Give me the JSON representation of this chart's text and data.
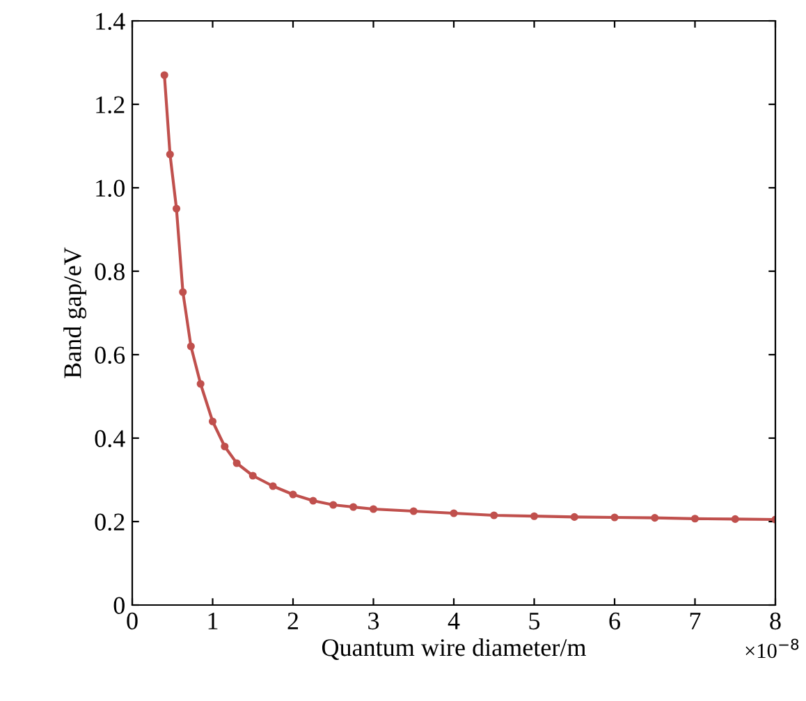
{
  "chart_data": {
    "type": "line",
    "xlabel": "Quantum wire diameter/m",
    "ylabel": "Band gap/eV",
    "x": [
      0.4,
      0.47,
      0.55,
      0.63,
      0.73,
      0.85,
      1.0,
      1.15,
      1.3,
      1.5,
      1.75,
      2.0,
      2.25,
      2.5,
      2.75,
      3.0,
      3.5,
      4.0,
      4.5,
      5.0,
      5.5,
      6.0,
      6.5,
      7.0,
      7.5,
      8.0
    ],
    "series": [
      {
        "color": "#c0504d",
        "values": [
          1.27,
          1.08,
          0.95,
          0.75,
          0.62,
          0.53,
          0.44,
          0.38,
          0.34,
          0.31,
          0.285,
          0.265,
          0.25,
          0.24,
          0.235,
          0.23,
          0.225,
          0.22,
          0.215,
          0.213,
          0.211,
          0.21,
          0.209,
          0.207,
          0.206,
          0.205
        ]
      }
    ],
    "xlim": [
      0,
      8
    ],
    "xticks": [
      0,
      1,
      2,
      3,
      4,
      5,
      6,
      7,
      8
    ],
    "ylim": [
      0,
      1.4
    ],
    "yticks": [
      0,
      0.2,
      0.4,
      0.6,
      0.8,
      {
        "value": 1,
        "label": "1.0"
      },
      1.2,
      1.4
    ],
    "annotations": [
      "×10$^{−8}$"
    ],
    "marker": "circle",
    "line_style": "solid",
    "grid": false,
    "legend": false
  }
}
